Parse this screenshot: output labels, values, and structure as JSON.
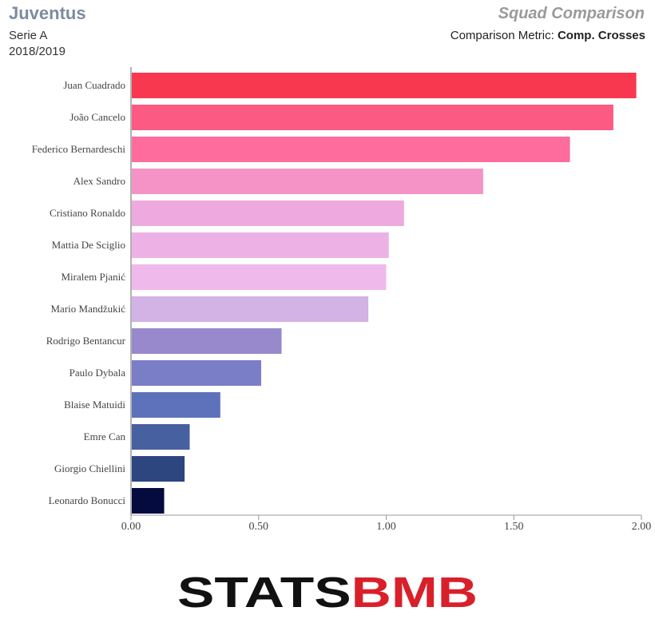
{
  "header": {
    "team": "Juventus",
    "league": "Serie A",
    "season": "2018/2019",
    "title": "Squad Comparison",
    "metric_label": "Comparison Metric:",
    "metric_value": "Comp. Crosses"
  },
  "chart_data": {
    "type": "bar",
    "orientation": "horizontal",
    "categories": [
      "Juan Cuadrado",
      "João Cancelo",
      "Federico Bernardeschi",
      "Alex Sandro",
      "Cristiano Ronaldo",
      "Mattia De Sciglio",
      "Miralem Pjanić",
      "Mario Mandžukić",
      "Rodrigo Bentancur",
      "Paulo Dybala",
      "Blaise Matuidi",
      "Emre Can",
      "Giorgio Chiellini",
      "Leonardo Bonucci"
    ],
    "values": [
      1.98,
      1.89,
      1.72,
      1.38,
      1.07,
      1.01,
      1.0,
      0.93,
      0.59,
      0.51,
      0.35,
      0.23,
      0.21,
      0.13
    ],
    "colors": [
      "#f8384e",
      "#fc5a82",
      "#fd6c9c",
      "#f593c7",
      "#eeaade",
      "#edb1e5",
      "#f0b9ec",
      "#d3b2e5",
      "#9789cb",
      "#7a7ec6",
      "#5e72bc",
      "#47609f",
      "#2d4680",
      "#050b3e"
    ],
    "xlim": [
      0,
      2.0
    ],
    "xticks": [
      "0.00",
      "0.50",
      "1.00",
      "1.50",
      "2.00"
    ],
    "grid": false
  },
  "logo": {
    "part1": "STATS",
    "part2": "B",
    "part3": "MB",
    "part1_color": "#111111",
    "part2_color": "#d9202a"
  }
}
